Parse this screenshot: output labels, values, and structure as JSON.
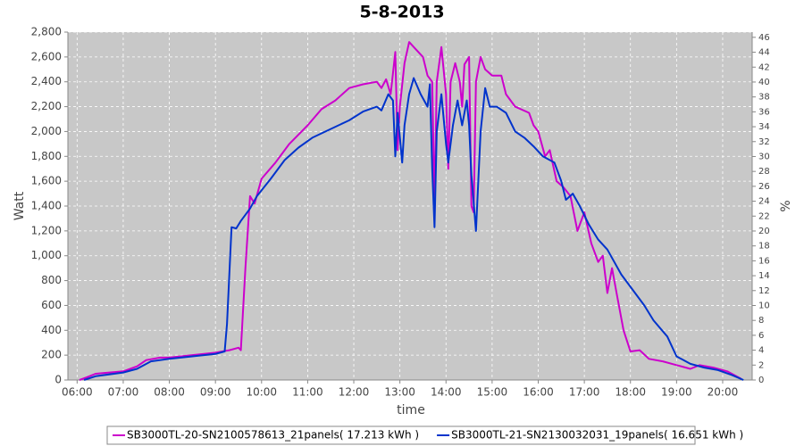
{
  "chart_data": {
    "type": "line",
    "title": "5-8-2013",
    "x_label": "time",
    "y_label": "Watt",
    "y2_label": "%",
    "xlim": [
      5.8,
      20.64
    ],
    "xticks": [
      {
        "value": 6,
        "label": "06:00"
      },
      {
        "value": 7,
        "label": "07:00"
      },
      {
        "value": 8,
        "label": "08:00"
      },
      {
        "value": 9,
        "label": "09:00"
      },
      {
        "value": 10,
        "label": "10:00"
      },
      {
        "value": 11,
        "label": "11:00"
      },
      {
        "value": 12,
        "label": "12:00"
      },
      {
        "value": 13,
        "label": "13:00"
      },
      {
        "value": 14,
        "label": "14:00"
      },
      {
        "value": 15,
        "label": "15:00"
      },
      {
        "value": 16,
        "label": "16:00"
      },
      {
        "value": 17,
        "label": "17:00"
      },
      {
        "value": 18,
        "label": "18:00"
      },
      {
        "value": 19,
        "label": "19:00"
      },
      {
        "value": 20,
        "label": "20:00"
      }
    ],
    "ylim": [
      0,
      2800
    ],
    "yticks": [
      0,
      200,
      400,
      600,
      800,
      {
        "value": 1000,
        "label": "1,000"
      },
      {
        "value": 1200,
        "label": "1,200"
      },
      {
        "value": 1400,
        "label": "1,400"
      },
      {
        "value": 1600,
        "label": "1,600"
      },
      {
        "value": 1800,
        "label": "1,800"
      },
      {
        "value": 2000,
        "label": "2,000"
      },
      {
        "value": 2200,
        "label": "2,200"
      },
      {
        "value": 2400,
        "label": "2,400"
      },
      {
        "value": 2600,
        "label": "2,600"
      },
      {
        "value": 2800,
        "label": "2,800"
      }
    ],
    "y2lim": [
      0,
      46.7
    ],
    "y2ticks": [
      0,
      2,
      4,
      6,
      8,
      10,
      12,
      14,
      16,
      18,
      20,
      22,
      24,
      26,
      28,
      30,
      32,
      34,
      36,
      38,
      40,
      42,
      44,
      46
    ],
    "grid": true,
    "legend": "bottom",
    "series": [
      {
        "name": "SB3000TL-20-SN2100578613_21panels( 17.213 kWh )",
        "color": "#cc00cc",
        "x": [
          6.05,
          6.2,
          6.4,
          6.7,
          7.0,
          7.3,
          7.5,
          7.8,
          8.0,
          8.5,
          9.0,
          9.3,
          9.5,
          9.55,
          9.65,
          9.75,
          9.85,
          10.0,
          10.3,
          10.6,
          11.0,
          11.3,
          11.6,
          11.9,
          12.2,
          12.5,
          12.6,
          12.7,
          12.8,
          12.9,
          12.95,
          13.0,
          13.1,
          13.2,
          13.3,
          13.5,
          13.6,
          13.7,
          13.75,
          13.8,
          13.9,
          14.0,
          14.05,
          14.1,
          14.2,
          14.3,
          14.35,
          14.4,
          14.5,
          14.55,
          14.6,
          14.65,
          14.75,
          14.85,
          15.0,
          15.2,
          15.3,
          15.5,
          15.8,
          15.9,
          16.0,
          16.15,
          16.25,
          16.4,
          16.55,
          16.7,
          16.85,
          17.0,
          17.15,
          17.3,
          17.4,
          17.5,
          17.6,
          17.7,
          17.85,
          18.0,
          18.2,
          18.4,
          18.7,
          19.0,
          19.3,
          19.5,
          19.8,
          20.1,
          20.4
        ],
        "values": [
          0,
          20,
          50,
          60,
          70,
          110,
          160,
          180,
          180,
          200,
          220,
          240,
          260,
          240,
          900,
          1480,
          1420,
          1620,
          1750,
          1900,
          2050,
          2180,
          2250,
          2350,
          2380,
          2400,
          2350,
          2420,
          2300,
          2640,
          1850,
          2200,
          2550,
          2720,
          2680,
          2600,
          2450,
          2400,
          1400,
          2400,
          2680,
          2300,
          1700,
          2400,
          2550,
          2400,
          2200,
          2540,
          2600,
          1400,
          1350,
          2400,
          2600,
          2500,
          2450,
          2450,
          2300,
          2200,
          2150,
          2050,
          2000,
          1800,
          1850,
          1600,
          1550,
          1480,
          1200,
          1350,
          1100,
          950,
          1000,
          700,
          900,
          700,
          400,
          230,
          240,
          170,
          150,
          120,
          90,
          120,
          100,
          70,
          10
        ]
      },
      {
        "name": "SB3000TL-21-SN2130032031_19panels( 16.651 kWh )",
        "color": "#0033cc",
        "x": [
          6.15,
          6.4,
          7.0,
          7.3,
          7.6,
          8.0,
          8.5,
          9.0,
          9.2,
          9.25,
          9.35,
          9.45,
          9.55,
          9.75,
          9.9,
          10.2,
          10.5,
          10.8,
          11.1,
          11.5,
          11.9,
          12.2,
          12.5,
          12.6,
          12.75,
          12.85,
          12.9,
          12.95,
          13.05,
          13.1,
          13.2,
          13.3,
          13.45,
          13.6,
          13.65,
          13.7,
          13.75,
          13.8,
          13.9,
          14.0,
          14.05,
          14.15,
          14.25,
          14.35,
          14.45,
          14.5,
          14.55,
          14.65,
          14.75,
          14.85,
          14.95,
          15.1,
          15.3,
          15.5,
          15.7,
          15.9,
          16.1,
          16.35,
          16.5,
          16.6,
          16.75,
          16.9,
          17.1,
          17.3,
          17.5,
          17.8,
          18.0,
          18.3,
          18.5,
          18.8,
          19.0,
          19.3,
          19.6,
          19.9,
          20.2,
          20.45
        ],
        "values": [
          0,
          30,
          60,
          90,
          150,
          170,
          190,
          210,
          230,
          450,
          1230,
          1220,
          1280,
          1380,
          1480,
          1620,
          1770,
          1870,
          1950,
          2020,
          2090,
          2160,
          2200,
          2170,
          2300,
          2250,
          1800,
          2150,
          1750,
          2050,
          2300,
          2430,
          2300,
          2200,
          2380,
          1700,
          1230,
          2000,
          2300,
          1900,
          1750,
          2050,
          2250,
          2050,
          2250,
          2050,
          1650,
          1200,
          2000,
          2350,
          2200,
          2200,
          2150,
          2000,
          1950,
          1880,
          1800,
          1750,
          1600,
          1450,
          1500,
          1400,
          1250,
          1130,
          1050,
          850,
          750,
          600,
          480,
          350,
          190,
          130,
          100,
          80,
          40,
          0
        ]
      }
    ]
  }
}
